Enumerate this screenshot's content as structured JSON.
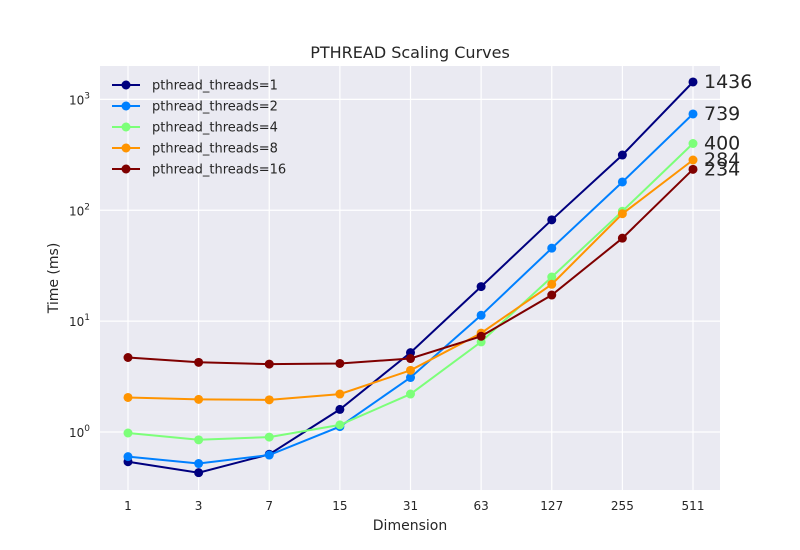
{
  "chart_data": {
    "type": "line",
    "title": "PTHREAD Scaling Curves",
    "xlabel": "Dimension",
    "ylabel": "Time (ms)",
    "yscale": "log",
    "ylim": [
      0.3,
      2000
    ],
    "grid": true,
    "legend_position": "top-left",
    "categories": [
      "1",
      "3",
      "7",
      "15",
      "31",
      "63",
      "127",
      "255",
      "511"
    ],
    "y_ticks": [
      {
        "base": "10",
        "exp": "0"
      },
      {
        "base": "10",
        "exp": "1"
      },
      {
        "base": "10",
        "exp": "2"
      },
      {
        "base": "10",
        "exp": "3"
      }
    ],
    "series": [
      {
        "name": "pthread_threads=1",
        "color": "#00007f",
        "values": [
          0.54,
          0.43,
          0.63,
          1.6,
          5.2,
          20.5,
          82,
          315,
          1436
        ],
        "end_label": "1436"
      },
      {
        "name": "pthread_threads=2",
        "color": "#0080ff",
        "values": [
          0.6,
          0.52,
          0.62,
          1.12,
          3.1,
          11.3,
          45.5,
          180,
          739
        ],
        "end_label": "739"
      },
      {
        "name": "pthread_threads=4",
        "color": "#7cff79",
        "values": [
          0.98,
          0.85,
          0.9,
          1.16,
          2.2,
          6.5,
          25,
          98,
          400
        ],
        "end_label": "400"
      },
      {
        "name": "pthread_threads=8",
        "color": "#ff9400",
        "values": [
          2.05,
          1.97,
          1.95,
          2.2,
          3.6,
          7.8,
          21.5,
          93,
          284
        ],
        "end_label": "284"
      },
      {
        "name": "pthread_threads=16",
        "color": "#7f0000",
        "values": [
          4.7,
          4.25,
          4.1,
          4.15,
          4.6,
          7.3,
          17.2,
          56,
          234
        ],
        "end_label": "234"
      }
    ]
  }
}
